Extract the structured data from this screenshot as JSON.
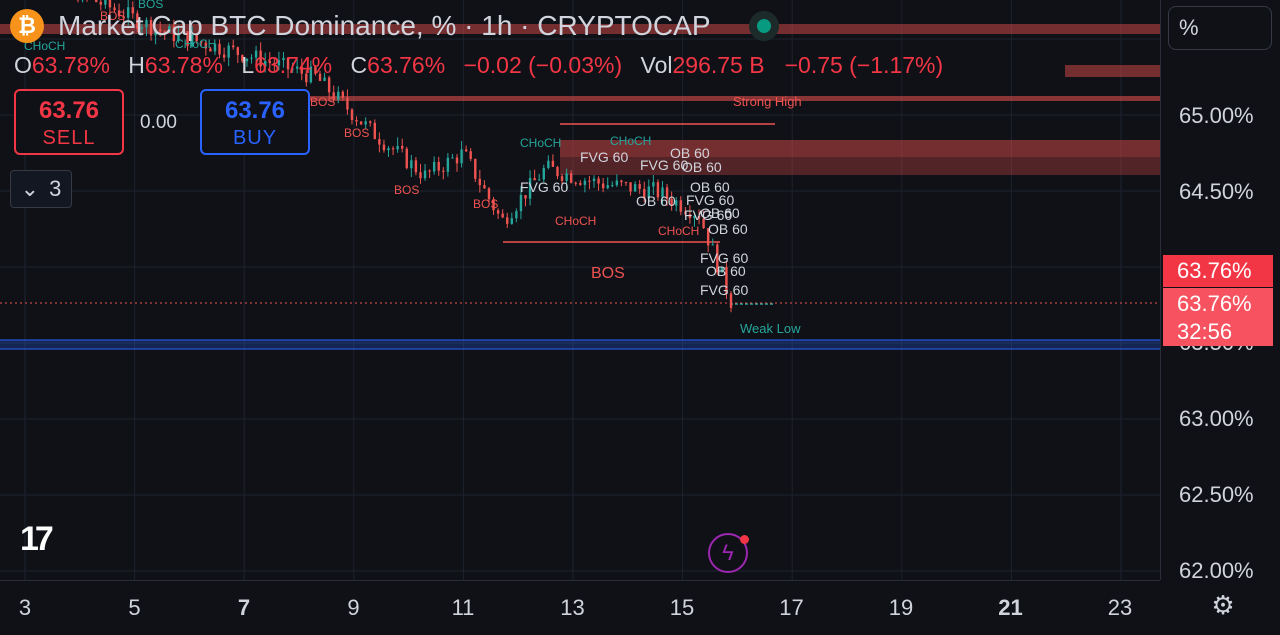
{
  "header": {
    "symbol_title": "Market Cap BTC Dominance, % · 1h · CRYPTOCAP",
    "icon": "bitcoin-icon",
    "ohlc": [
      {
        "key": "O",
        "value": "63.78%"
      },
      {
        "key": "H",
        "value": "63.78%"
      },
      {
        "key": "L",
        "value": "63.74%"
      },
      {
        "key": "C",
        "value": "63.76%"
      }
    ],
    "change": "−0.02 (−0.03%)",
    "vol_label": "Vol",
    "vol_value": "296.75 B",
    "vol_change": "−0.75 (−1.17%)"
  },
  "trade": {
    "sell_price": "63.76",
    "sell_label": "SELL",
    "buy_price": "63.76",
    "buy_label": "BUY",
    "spread": "0.00"
  },
  "indicators": {
    "collapse_count": "3"
  },
  "price_axis": {
    "unit_button": "%",
    "labels": [
      "65.00%",
      "64.50%",
      "63.00%",
      "62.50%",
      "62.00%"
    ],
    "hidden_label": "63.50%",
    "last_price": "63.76%",
    "last_price2": "63.76%",
    "countdown": "32:56"
  },
  "time_axis": {
    "labels": [
      {
        "text": "3",
        "bold": false
      },
      {
        "text": "5",
        "bold": false
      },
      {
        "text": "7",
        "bold": true
      },
      {
        "text": "9",
        "bold": false
      },
      {
        "text": "11",
        "bold": false
      },
      {
        "text": "13",
        "bold": false
      },
      {
        "text": "15",
        "bold": false
      },
      {
        "text": "17",
        "bold": false
      },
      {
        "text": "19",
        "bold": false
      },
      {
        "text": "21",
        "bold": true
      },
      {
        "text": "23",
        "bold": false
      }
    ]
  },
  "annotations": {
    "strong_high": "Strong High",
    "weak_low": "Weak Low",
    "bos": "BOS",
    "choch": "CHoCH",
    "fvg": "FVG 60",
    "ob": "OB 60"
  },
  "colors": {
    "bull": "#26a69a",
    "bear": "#ef5350",
    "accent_red": "#f23645",
    "accent_blue": "#2962ff",
    "background": "#0f1117"
  },
  "chart_data": {
    "type": "candlestick",
    "title": "Market Cap BTC Dominance, %",
    "timeframe": "1h",
    "ylim": [
      62.0,
      65.3
    ],
    "x_ticks": [
      "3",
      "5",
      "7",
      "9",
      "11",
      "13",
      "15",
      "17",
      "19",
      "21",
      "23"
    ],
    "last_price": 63.76,
    "levels": [
      {
        "label": "Strong High",
        "value": 65.1
      },
      {
        "label": "Weak Low",
        "value": 63.76
      }
    ],
    "approx_close_path": [
      {
        "day": 2.8,
        "close": 66.0
      },
      {
        "day": 4.0,
        "close": 65.8
      },
      {
        "day": 5.5,
        "close": 65.55
      },
      {
        "day": 7.0,
        "close": 65.4
      },
      {
        "day": 8.3,
        "close": 65.25
      },
      {
        "day": 9.3,
        "close": 64.9
      },
      {
        "day": 10.3,
        "close": 64.6
      },
      {
        "day": 11.0,
        "close": 64.75
      },
      {
        "day": 11.7,
        "close": 64.3
      },
      {
        "day": 12.5,
        "close": 64.65
      },
      {
        "day": 13.5,
        "close": 64.55
      },
      {
        "day": 14.5,
        "close": 64.5
      },
      {
        "day": 15.3,
        "close": 64.35
      },
      {
        "day": 15.9,
        "close": 63.76
      }
    ]
  }
}
